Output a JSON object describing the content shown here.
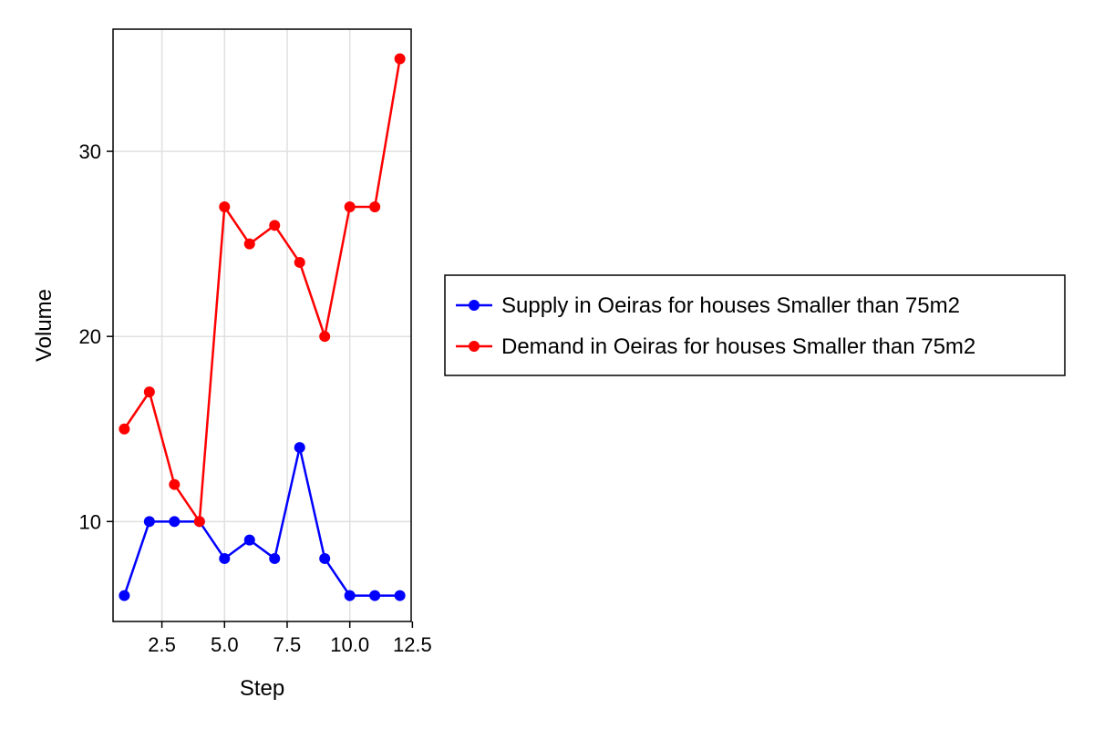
{
  "chart_data": {
    "type": "line",
    "xlabel": "Step",
    "ylabel": "Volume",
    "x": [
      1,
      2,
      3,
      4,
      5,
      6,
      7,
      8,
      9,
      10,
      11,
      12
    ],
    "xlim": [
      0.55,
      12.45
    ],
    "ylim": [
      4.6,
      36.6
    ],
    "xticks": [
      2.5,
      5.0,
      7.5,
      10.0,
      12.5
    ],
    "xtick_labels": [
      "2.5",
      "5.0",
      "7.5",
      "10.0",
      "12.5"
    ],
    "yticks": [
      10,
      20,
      30
    ],
    "ytick_labels": [
      "10",
      "20",
      "30"
    ],
    "grid": true,
    "legend_position": "right",
    "series": [
      {
        "name": "Supply in Oeiras for houses Smaller than 75m2",
        "color": "#0000ff",
        "marker": "circle",
        "values": [
          6,
          10,
          10,
          10,
          8,
          9,
          8,
          14,
          8,
          6,
          6,
          6
        ]
      },
      {
        "name": "Demand in Oeiras for houses Smaller than 75m2",
        "color": "#ff0000",
        "marker": "circle",
        "values": [
          15,
          17,
          12,
          10,
          27,
          25,
          26,
          24,
          20,
          27,
          27,
          35
        ]
      }
    ]
  }
}
